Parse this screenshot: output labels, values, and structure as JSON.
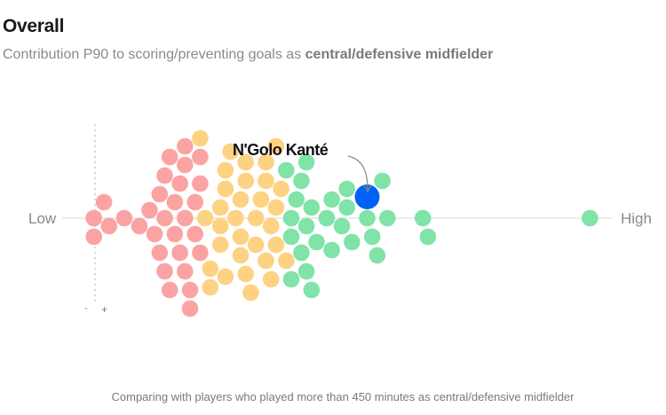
{
  "header": {
    "title": "Overall",
    "subtitle_prefix": "Contribution P90 to scoring/preventing goals as ",
    "subtitle_bold": "central/defensive midfielder"
  },
  "footer": "Comparing with players who played more than 450 minutes as central/defensive midfielder",
  "chart_data": {
    "type": "scatter",
    "subtype": "beeswarm",
    "xlabel_low": "Low",
    "xlabel_high": "High",
    "scale_minus": "-",
    "scale_plus": "+",
    "xlim": [
      0,
      100
    ],
    "grid": false,
    "highlight": {
      "name": "N'Golo Kanté",
      "value": 55,
      "color": "#0062f5"
    },
    "groups": [
      {
        "color": "#fba3a3",
        "values": [
          19,
          17,
          21,
          15,
          19,
          17,
          20,
          3,
          12,
          15,
          19,
          1,
          7,
          10,
          13,
          16,
          21,
          4,
          1,
          15,
          19,
          22,
          16,
          20,
          14,
          18,
          22,
          14,
          18,
          22
        ]
      },
      {
        "color": "#fdd283",
        "values": [
          24,
          29,
          26,
          22,
          30,
          27,
          30,
          23,
          27,
          31,
          26,
          30,
          26,
          31,
          24,
          28,
          27,
          36,
          34,
          37,
          35,
          32,
          37,
          35,
          38,
          35,
          31,
          39,
          36,
          33,
          37,
          33
        ]
      },
      {
        "color": "#80e3a8",
        "values": [
          43,
          40,
          43,
          48,
          57,
          40,
          44,
          51,
          41,
          47,
          50,
          66,
          59,
          55,
          42,
          45,
          67,
          51,
          58,
          48,
          42,
          52,
          56,
          40,
          44,
          39,
          43,
          99
        ]
      }
    ]
  }
}
